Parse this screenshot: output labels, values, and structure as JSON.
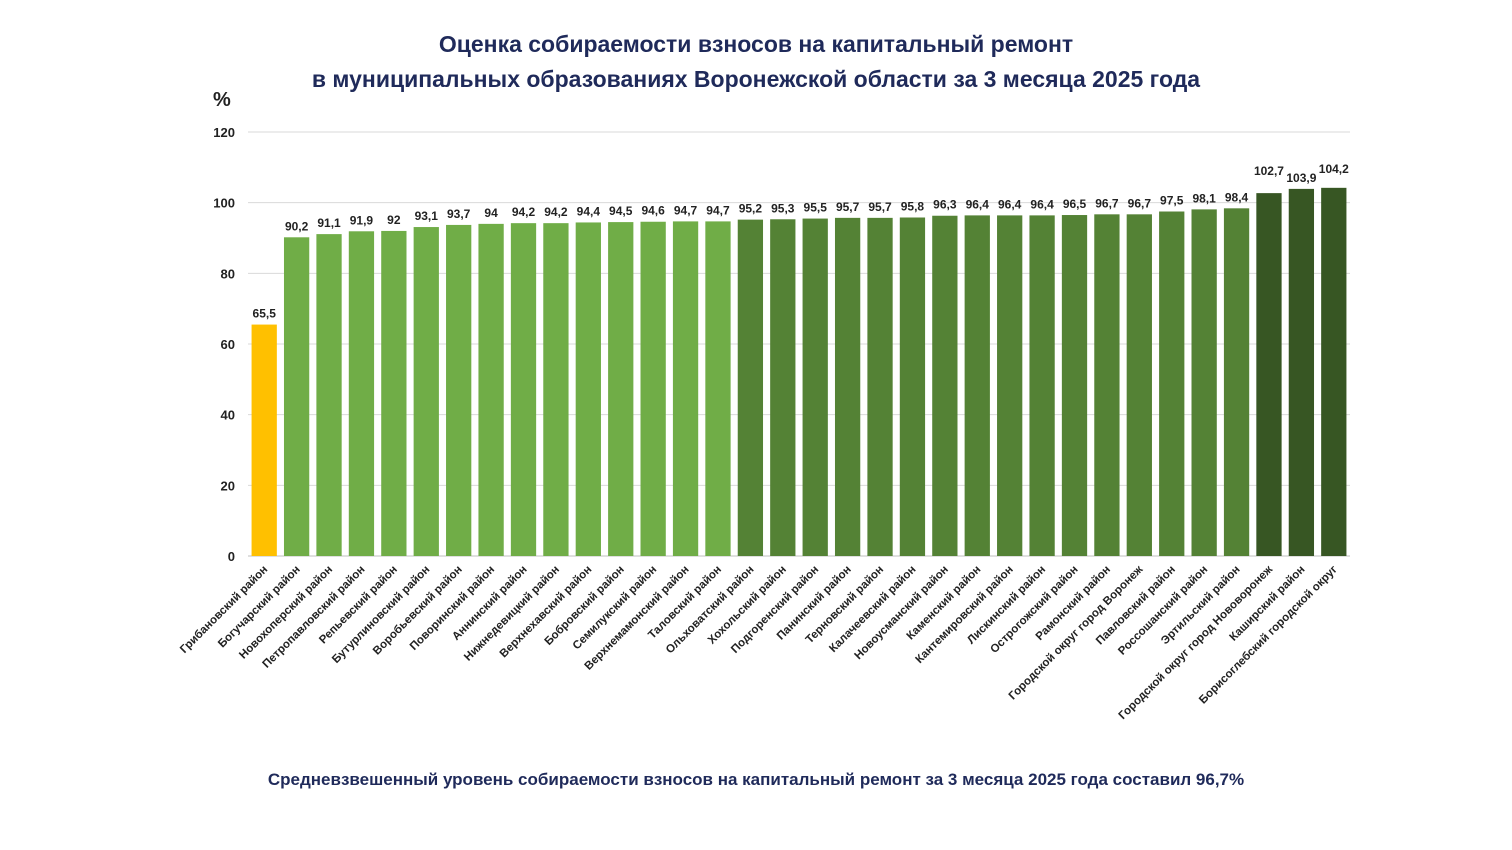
{
  "title_line1": "Оценка собираемости взносов на капитальный ремонт",
  "title_line2": "в муниципальных образованиях Воронежской области за 3 месяца 2025 года",
  "unit_label": "%",
  "footer_note": "Средневзвешенный уровень собираемости взносов на капитальный ремонт за 3 месяца 2025 года составил 96,7%",
  "colors": {
    "below_90": "#ffc000",
    "range_90_95": "#70ad47",
    "range_95_100": "#548235",
    "above_100": "#375623",
    "grid": "#d9d9d9",
    "title": "#1f2a5a"
  },
  "chart_data": {
    "type": "bar",
    "title": "",
    "xlabel": "",
    "ylabel": "%",
    "ylim": [
      0,
      120
    ],
    "yticks": [
      0,
      20,
      40,
      60,
      80,
      100,
      120
    ],
    "grid": true,
    "categories": [
      "Грибановский район",
      "Богучарский район",
      "Новохоперский район",
      "Петропавловский район",
      "Репьевский район",
      "Бутурлиновский район",
      "Воробьевский район",
      "Поворинский район",
      "Аннинский район",
      "Нижнедевицкий район",
      "Верхнехавский район",
      "Бобровский район",
      "Семилукский район",
      "Верхнемамонский район",
      "Таловский район",
      "Ольховатский район",
      "Хохольский район",
      "Подгоренский район",
      "Панинский район",
      "Терновский район",
      "Калачеевский район",
      "Новоусманский район",
      "Каменский район",
      "Кантемировский район",
      "Лискинский район",
      "Острогожский район",
      "Рамонский район",
      "Городской округ город Воронеж",
      "Павловский район",
      "Россошанский район",
      "Эртильский район",
      "Городской округ город Нововоронеж",
      "Каширский район",
      "Борисоглебский городской округ"
    ],
    "values": [
      65.5,
      90.2,
      91.1,
      91.9,
      92,
      93.1,
      93.7,
      94,
      94.2,
      94.2,
      94.4,
      94.5,
      94.6,
      94.7,
      94.7,
      95.2,
      95.3,
      95.5,
      95.7,
      95.7,
      95.8,
      96.3,
      96.4,
      96.4,
      96.4,
      96.5,
      96.7,
      96.7,
      97.5,
      98.1,
      98.4,
      102.7,
      103.9,
      104.2
    ],
    "value_labels": [
      "65,5",
      "90,2",
      "91,1",
      "91,9",
      "92",
      "93,1",
      "93,7",
      "94",
      "94,2",
      "94,2",
      "94,4",
      "94,5",
      "94,6",
      "94,7",
      "94,7",
      "95,2",
      "95,3",
      "95,5",
      "95,7",
      "95,7",
      "95,8",
      "96,3",
      "96,4",
      "96,4",
      "96,4",
      "96,5",
      "96,7",
      "96,7",
      "97,5",
      "98,1",
      "98,4",
      "102,7",
      "103,9",
      "104,2"
    ]
  }
}
